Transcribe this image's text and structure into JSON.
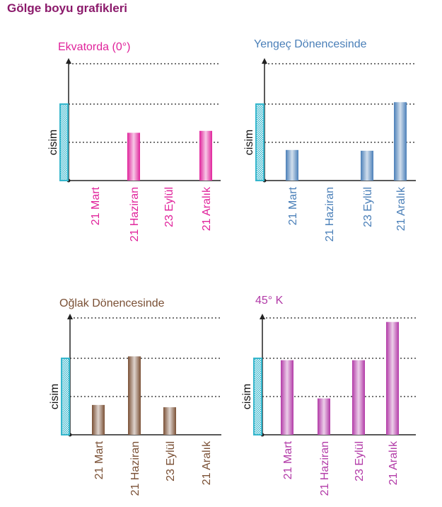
{
  "title": "Gölge boyu grafikleri",
  "title_color": "#8b1a6b",
  "object_label": "cisim",
  "object_color": "#35b6cc",
  "chart_data": [
    {
      "type": "bar",
      "title": "Ekvatorda (0°)",
      "color": "#e0239b",
      "object_height": 2,
      "ylim": [
        0,
        3
      ],
      "categories": [
        "21 Mart",
        "21 Haziran",
        "23 Eylül",
        "21 Aralık"
      ],
      "values": [
        0,
        1.25,
        0,
        1.3
      ]
    },
    {
      "type": "bar",
      "title": "Yengeç Dönencesinde",
      "color": "#4a7fb8",
      "object_height": 2,
      "ylim": [
        0,
        3
      ],
      "categories": [
        "21 Mart",
        "21 Haziran",
        "23 Eylül",
        "21 Aralık"
      ],
      "values": [
        0.8,
        0,
        0.78,
        2.05
      ]
    },
    {
      "type": "bar",
      "title": "Oğlak Dönencesinde",
      "color": "#7a5035",
      "object_height": 2,
      "ylim": [
        0,
        3
      ],
      "categories": [
        "21 Mart",
        "21 Haziran",
        "23 Eylül",
        "21 Aralık"
      ],
      "values": [
        0.78,
        2.05,
        0.72,
        0
      ]
    },
    {
      "type": "bar",
      "title": "45° K",
      "color": "#b23aa7",
      "object_height": 2,
      "ylim": [
        0,
        3
      ],
      "categories": [
        "21 Mart",
        "21 Haziran",
        "23 Eylül",
        "21 Aralık"
      ],
      "values": [
        1.95,
        0.95,
        1.95,
        2.95
      ]
    }
  ]
}
